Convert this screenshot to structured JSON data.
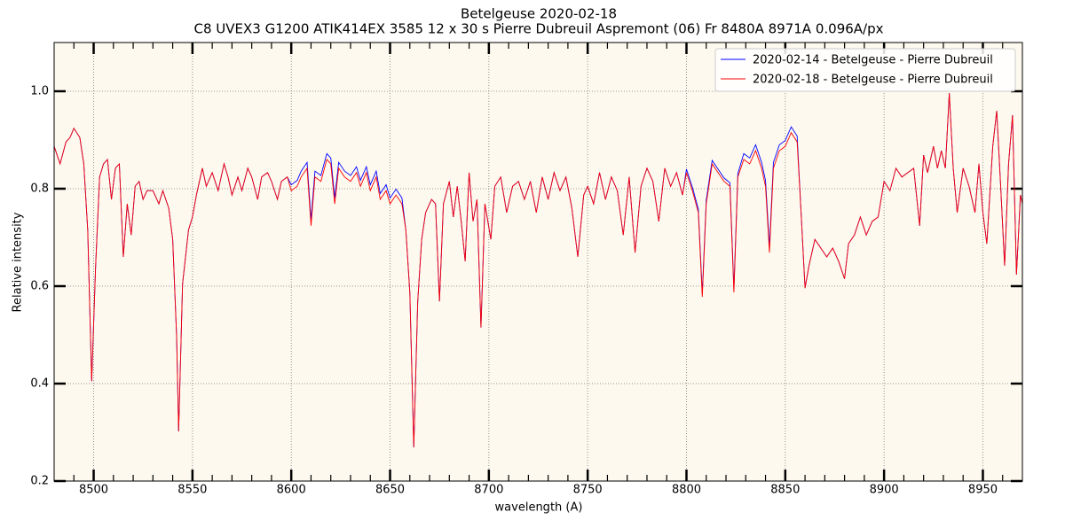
{
  "chart_data": {
    "type": "line",
    "title": "Betelgeuse 2020-02-18",
    "subtitle": "C8 UVEX3 G1200 ATIK414EX 3585 12 x 30 s Pierre Dubreuil Aspremont (06) Fr 8480A 8971A 0.096A/px",
    "xlabel": "wavelength (A)",
    "ylabel": "Relative intensity",
    "xlim": [
      8480,
      8970
    ],
    "ylim": [
      0.2,
      1.1
    ],
    "xticks": [
      8500,
      8550,
      8600,
      8650,
      8700,
      8750,
      8800,
      8850,
      8900,
      8950
    ],
    "xminorticks": [
      8490,
      8510,
      8520,
      8530,
      8540,
      8560,
      8570,
      8580,
      8590,
      8610,
      8620,
      8630,
      8640,
      8660,
      8670,
      8680,
      8690,
      8710,
      8720,
      8730,
      8740,
      8760,
      8770,
      8780,
      8790,
      8810,
      8820,
      8830,
      8840,
      8860,
      8870,
      8880,
      8890,
      8910,
      8920,
      8930,
      8940,
      8960
    ],
    "yticks": [
      0.2,
      0.4,
      0.6,
      0.8,
      {
        "value": 1,
        "label": "1.0"
      }
    ],
    "grid": true,
    "legend": "upper right",
    "background": "#fdf9ee",
    "x": [
      8480,
      8483,
      8486,
      8488,
      8490,
      8493,
      8495,
      8497,
      8499,
      8501,
      8503,
      8505,
      8507,
      8509,
      8511,
      8513,
      8515,
      8517,
      8519,
      8521,
      8523,
      8525,
      8527,
      8530,
      8533,
      8535,
      8538,
      8540,
      8542,
      8543,
      8545,
      8548,
      8550,
      8552,
      8555,
      8557,
      8560,
      8563,
      8566,
      8568,
      8570,
      8573,
      8575,
      8578,
      8580,
      8583,
      8585,
      8588,
      8590,
      8593,
      8595,
      8598,
      8600,
      8603,
      8605,
      8608,
      8610,
      8612,
      8615,
      8618,
      8620,
      8622,
      8624,
      8627,
      8630,
      8633,
      8635,
      8638,
      8640,
      8643,
      8645,
      8648,
      8650,
      8653,
      8656,
      8658,
      8660,
      8662,
      8664,
      8666,
      8668,
      8671,
      8673,
      8675,
      8677,
      8680,
      8682,
      8684,
      8686,
      8688,
      8690,
      8692,
      8694,
      8696,
      8698,
      8701,
      8703,
      8706,
      8709,
      8712,
      8715,
      8718,
      8721,
      8724,
      8727,
      8730,
      8733,
      8736,
      8739,
      8742,
      8745,
      8748,
      8750,
      8753,
      8756,
      8759,
      8762,
      8765,
      8768,
      8771,
      8774,
      8777,
      8780,
      8783,
      8786,
      8789,
      8792,
      8795,
      8798,
      8800,
      8803,
      8806,
      8808,
      8810,
      8813,
      8816,
      8819,
      8822,
      8824,
      8826,
      8829,
      8832,
      8835,
      8838,
      8840,
      8842,
      8844,
      8847,
      8850,
      8853,
      8856,
      8858,
      8860,
      8862,
      8865,
      8868,
      8871,
      8874,
      8877,
      8880,
      8882,
      8885,
      8888,
      8891,
      8894,
      8897,
      8900,
      8903,
      8906,
      8909,
      8912,
      8915,
      8918,
      8920,
      8922,
      8925,
      8927,
      8929,
      8931,
      8933,
      8935,
      8937,
      8940,
      8943,
      8946,
      8948,
      8950,
      8952,
      8955,
      8957,
      8959,
      8961,
      8963,
      8965,
      8967,
      8969,
      8970
    ],
    "series": [
      {
        "name": "2020-02-14 - Betelgeuse - Pierre Dubreuil",
        "color": "#0000ff",
        "values": [
          0.887,
          0.851,
          0.896,
          0.905,
          0.924,
          0.905,
          0.851,
          0.715,
          0.405,
          0.642,
          0.824,
          0.851,
          0.86,
          0.778,
          0.842,
          0.851,
          0.66,
          0.769,
          0.705,
          0.805,
          0.815,
          0.778,
          0.796,
          0.796,
          0.769,
          0.796,
          0.76,
          0.696,
          0.496,
          0.302,
          0.605,
          0.715,
          0.742,
          0.787,
          0.842,
          0.805,
          0.833,
          0.796,
          0.851,
          0.824,
          0.787,
          0.824,
          0.796,
          0.842,
          0.824,
          0.778,
          0.824,
          0.833,
          0.815,
          0.778,
          0.815,
          0.824,
          0.808,
          0.817,
          0.836,
          0.854,
          0.736,
          0.836,
          0.827,
          0.872,
          0.863,
          0.781,
          0.854,
          0.836,
          0.827,
          0.845,
          0.817,
          0.845,
          0.808,
          0.836,
          0.79,
          0.808,
          0.781,
          0.799,
          0.781,
          0.715,
          0.587,
          0.269,
          0.569,
          0.696,
          0.751,
          0.778,
          0.769,
          0.569,
          0.769,
          0.815,
          0.742,
          0.805,
          0.733,
          0.651,
          0.833,
          0.733,
          0.778,
          0.515,
          0.769,
          0.696,
          0.805,
          0.824,
          0.751,
          0.805,
          0.815,
          0.778,
          0.815,
          0.751,
          0.824,
          0.778,
          0.833,
          0.796,
          0.824,
          0.76,
          0.66,
          0.787,
          0.805,
          0.769,
          0.833,
          0.778,
          0.824,
          0.796,
          0.705,
          0.824,
          0.669,
          0.805,
          0.842,
          0.815,
          0.733,
          0.842,
          0.805,
          0.833,
          0.787,
          0.84,
          0.803,
          0.758,
          0.585,
          0.776,
          0.858,
          0.84,
          0.822,
          0.812,
          0.594,
          0.831,
          0.872,
          0.863,
          0.89,
          0.854,
          0.817,
          0.681,
          0.854,
          0.89,
          0.899,
          0.927,
          0.908,
          0.751,
          0.596,
          0.642,
          0.696,
          0.678,
          0.66,
          0.678,
          0.651,
          0.615,
          0.687,
          0.705,
          0.742,
          0.705,
          0.733,
          0.742,
          0.815,
          0.796,
          0.842,
          0.824,
          0.833,
          0.842,
          0.724,
          0.869,
          0.833,
          0.887,
          0.842,
          0.878,
          0.842,
          0.996,
          0.842,
          0.751,
          0.842,
          0.805,
          0.751,
          0.851,
          0.751,
          0.687,
          0.887,
          0.96,
          0.805,
          0.642,
          0.851,
          0.951,
          0.624,
          0.787,
          0.769
        ]
      },
      {
        "name": "2020-02-18 - Betelgeuse - Pierre Dubreuil",
        "color": "#ff0000",
        "values": [
          0.887,
          0.851,
          0.896,
          0.905,
          0.924,
          0.905,
          0.851,
          0.715,
          0.405,
          0.642,
          0.824,
          0.851,
          0.86,
          0.778,
          0.842,
          0.851,
          0.66,
          0.769,
          0.705,
          0.805,
          0.815,
          0.778,
          0.796,
          0.796,
          0.769,
          0.796,
          0.76,
          0.696,
          0.496,
          0.302,
          0.605,
          0.715,
          0.742,
          0.787,
          0.842,
          0.805,
          0.833,
          0.796,
          0.851,
          0.824,
          0.787,
          0.824,
          0.796,
          0.842,
          0.824,
          0.778,
          0.824,
          0.833,
          0.815,
          0.778,
          0.815,
          0.824,
          0.796,
          0.805,
          0.824,
          0.842,
          0.724,
          0.824,
          0.815,
          0.86,
          0.851,
          0.769,
          0.842,
          0.824,
          0.815,
          0.833,
          0.805,
          0.833,
          0.796,
          0.824,
          0.778,
          0.796,
          0.769,
          0.787,
          0.769,
          0.715,
          0.587,
          0.269,
          0.569,
          0.696,
          0.751,
          0.778,
          0.769,
          0.569,
          0.769,
          0.815,
          0.742,
          0.805,
          0.733,
          0.651,
          0.833,
          0.733,
          0.778,
          0.515,
          0.769,
          0.696,
          0.805,
          0.824,
          0.751,
          0.805,
          0.815,
          0.778,
          0.815,
          0.751,
          0.824,
          0.778,
          0.833,
          0.796,
          0.824,
          0.76,
          0.66,
          0.787,
          0.805,
          0.769,
          0.833,
          0.778,
          0.824,
          0.796,
          0.705,
          0.824,
          0.669,
          0.805,
          0.842,
          0.815,
          0.733,
          0.842,
          0.805,
          0.833,
          0.787,
          0.833,
          0.796,
          0.751,
          0.578,
          0.769,
          0.851,
          0.833,
          0.815,
          0.805,
          0.587,
          0.824,
          0.86,
          0.851,
          0.878,
          0.842,
          0.805,
          0.669,
          0.842,
          0.878,
          0.887,
          0.915,
          0.896,
          0.751,
          0.596,
          0.642,
          0.696,
          0.678,
          0.66,
          0.678,
          0.651,
          0.615,
          0.687,
          0.705,
          0.742,
          0.705,
          0.733,
          0.742,
          0.815,
          0.796,
          0.842,
          0.824,
          0.833,
          0.842,
          0.724,
          0.869,
          0.833,
          0.887,
          0.842,
          0.878,
          0.842,
          0.996,
          0.842,
          0.751,
          0.842,
          0.805,
          0.751,
          0.851,
          0.751,
          0.687,
          0.887,
          0.96,
          0.805,
          0.642,
          0.851,
          0.951,
          0.624,
          0.787,
          0.769
        ]
      }
    ]
  }
}
